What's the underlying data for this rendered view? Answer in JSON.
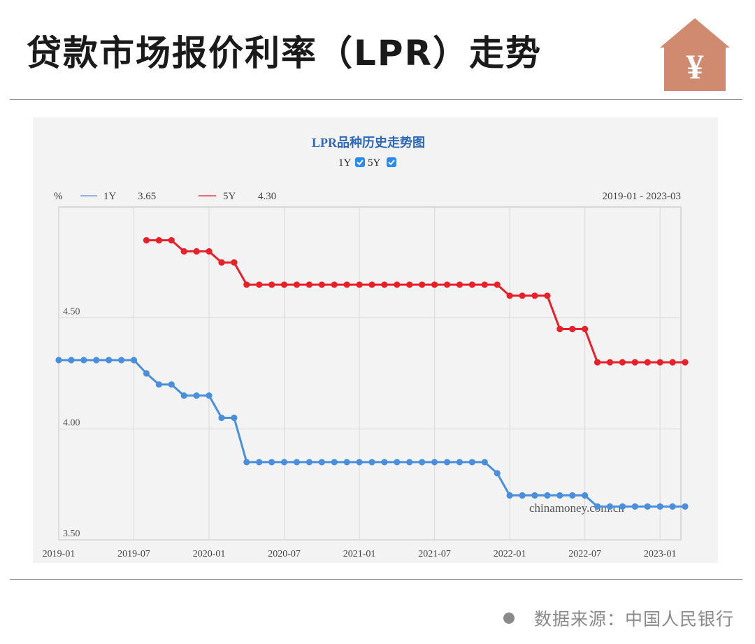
{
  "header": {
    "title": "贷款市场报价利率（LPR）走势",
    "icon": "house-yen-icon",
    "icon_glyph": "¥",
    "icon_color": "#d08a70"
  },
  "footer": {
    "source": "数据来源：中国人民银行"
  },
  "chart_data": {
    "type": "line",
    "title": "LPR品种历史走势图",
    "toggles": [
      {
        "label": "1Y",
        "checked": true
      },
      {
        "label": "5Y",
        "checked": true
      }
    ],
    "unit_label": "%",
    "legend": [
      {
        "name": "1Y",
        "latest": "3.65",
        "color": "#4a8fdc"
      },
      {
        "name": "5Y",
        "latest": "4.30",
        "color": "#e8202a"
      }
    ],
    "date_range": "2019-01 - 2023-03",
    "watermark": "chinamoney.com.cn",
    "x_start": "2019-01",
    "x_ticks": [
      "2019-01",
      "2019-07",
      "2020-01",
      "2020-07",
      "2021-01",
      "2021-07",
      "2022-01",
      "2022-07",
      "2023-01"
    ],
    "y_ticks": [
      "4.50",
      "4.00",
      "3.50"
    ],
    "ylim": [
      3.5,
      5.0
    ],
    "grid": true,
    "series": [
      {
        "name": "1Y",
        "start_month_index": 0,
        "values": [
          4.31,
          4.31,
          4.31,
          4.31,
          4.31,
          4.31,
          4.31,
          4.25,
          4.2,
          4.2,
          4.15,
          4.15,
          4.15,
          4.05,
          4.05,
          3.85,
          3.85,
          3.85,
          3.85,
          3.85,
          3.85,
          3.85,
          3.85,
          3.85,
          3.85,
          3.85,
          3.85,
          3.85,
          3.85,
          3.85,
          3.85,
          3.85,
          3.85,
          3.85,
          3.85,
          3.8,
          3.7,
          3.7,
          3.7,
          3.7,
          3.7,
          3.7,
          3.7,
          3.65,
          3.65,
          3.65,
          3.65,
          3.65,
          3.65,
          3.65,
          3.65
        ]
      },
      {
        "name": "5Y",
        "start_month_index": 7,
        "values": [
          4.85,
          4.85,
          4.85,
          4.8,
          4.8,
          4.8,
          4.75,
          4.75,
          4.65,
          4.65,
          4.65,
          4.65,
          4.65,
          4.65,
          4.65,
          4.65,
          4.65,
          4.65,
          4.65,
          4.65,
          4.65,
          4.65,
          4.65,
          4.65,
          4.65,
          4.65,
          4.65,
          4.65,
          4.65,
          4.6,
          4.6,
          4.6,
          4.6,
          4.45,
          4.45,
          4.45,
          4.3,
          4.3,
          4.3,
          4.3,
          4.3,
          4.3,
          4.3,
          4.3
        ]
      }
    ]
  }
}
